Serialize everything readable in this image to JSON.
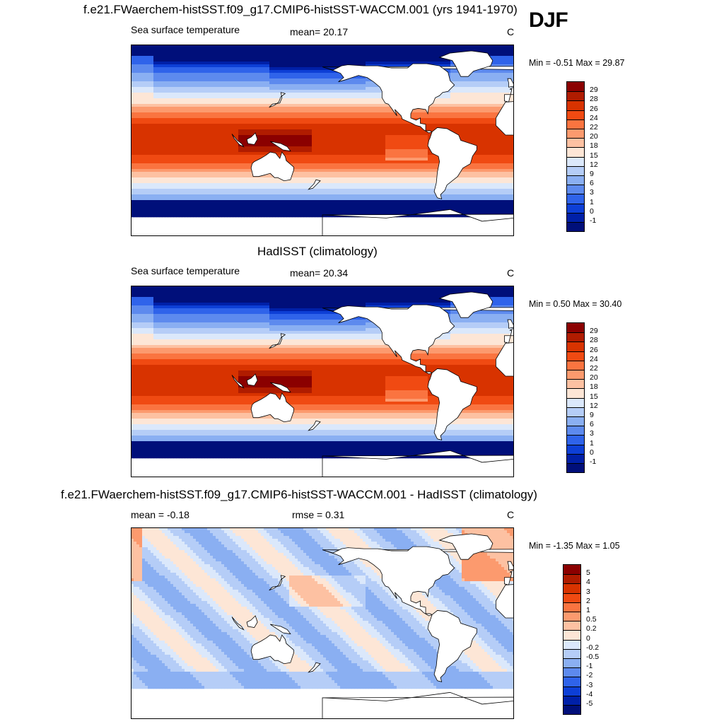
{
  "season": "DJF",
  "panels": [
    {
      "title": "f.e21.FWaerchem-histSST.f09_g17.CMIP6-histSST-WACCM.001 (yrs 1941-1970)",
      "left_label": "Sea surface temperature",
      "center_label": "mean=  20.17",
      "units": "C",
      "minmax": "Min =  -0.51 Max =  29.87",
      "kind": "abs"
    },
    {
      "title": "HadISST (climatology)",
      "left_label": "Sea surface temperature",
      "center_label": "mean=  20.34",
      "units": "C",
      "minmax": "Min =   0.50 Max =  30.40",
      "kind": "abs"
    },
    {
      "title": "f.e21.FWaerchem-histSST.f09_g17.CMIP6-histSST-WACCM.001 - HadISST (climatology)",
      "left_label": "mean =  -0.18",
      "center_label": "rmse =   0.31",
      "units": "C",
      "minmax": "Min =  -1.35 Max =   1.05",
      "kind": "diff"
    }
  ],
  "colorbars": {
    "abs": {
      "labels": [
        "29",
        "28",
        "26",
        "24",
        "22",
        "20",
        "18",
        "15",
        "12",
        "9",
        "6",
        "3",
        "1",
        "0",
        "-1"
      ],
      "colors": [
        "#8b0000",
        "#b01c00",
        "#d83300",
        "#f04a12",
        "#fa7440",
        "#fc9a6e",
        "#fdc1a2",
        "#fde6d6",
        "#dbe8fb",
        "#b5cdf7",
        "#8aaff2",
        "#5d8aee",
        "#2f63ea",
        "#0d3fd6",
        "#0020a8",
        "#000f7a"
      ]
    },
    "diff": {
      "labels": [
        "5",
        "4",
        "3",
        "2",
        "1",
        "0.5",
        "0.2",
        "0",
        "-0.2",
        "-0.5",
        "-1",
        "-2",
        "-3",
        "-4",
        "-5"
      ],
      "colors": [
        "#8b0000",
        "#b01c00",
        "#d83300",
        "#f04a12",
        "#fa7440",
        "#fc9a6e",
        "#fdc1a2",
        "#fde6d6",
        "#dbe8fb",
        "#b5cdf7",
        "#8aaff2",
        "#5d8aee",
        "#2f63ea",
        "#0d3fd6",
        "#0020a8",
        "#000f7a"
      ]
    }
  }
}
